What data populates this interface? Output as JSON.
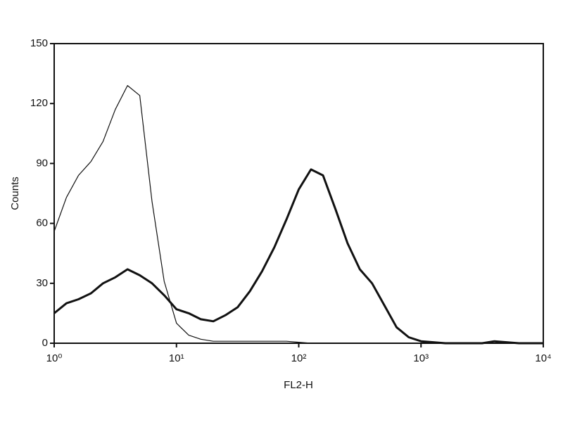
{
  "chart_data": {
    "type": "line",
    "x_label": "FL2-H",
    "y_label": "Counts",
    "x": [
      1,
      1.26,
      1.58,
      2,
      2.51,
      3.16,
      3.98,
      5.01,
      6.31,
      7.94,
      10,
      12.6,
      15.8,
      20,
      25.1,
      31.6,
      39.8,
      50.1,
      63.1,
      79.4,
      100,
      126,
      158,
      200,
      251,
      316,
      398,
      501,
      631,
      794,
      1000,
      1260,
      1580,
      2000,
      2510,
      3160,
      3980,
      5010,
      6310,
      7940,
      10000
    ],
    "series": [
      {
        "color": "#111111",
        "width": 1.2,
        "values": [
          56,
          73,
          84,
          91,
          101,
          117,
          129,
          124,
          71,
          31,
          10,
          4,
          2,
          1,
          1,
          1,
          1,
          1,
          1,
          1,
          0.5,
          0,
          0,
          0,
          0,
          0,
          0,
          0,
          0,
          0,
          0,
          0,
          0,
          0,
          0,
          0,
          0,
          0,
          0,
          0,
          0
        ]
      },
      {
        "color": "#111111",
        "width": 3,
        "values": [
          15,
          20,
          22,
          25,
          30,
          33,
          37,
          34,
          30,
          24,
          17,
          15,
          12,
          11,
          14,
          18,
          26,
          36,
          48,
          62,
          77,
          87,
          84,
          67,
          50,
          37,
          30,
          19,
          8,
          3,
          1,
          0.5,
          0,
          0,
          0,
          0,
          1,
          0.5,
          0,
          0,
          0
        ]
      }
    ],
    "xlim": [
      1,
      10000
    ],
    "xlog": true,
    "xticks": [
      {
        "value": 1,
        "label": "10⁰"
      },
      {
        "value": 10,
        "label": "10¹"
      },
      {
        "value": 100,
        "label": "10²"
      },
      {
        "value": 1000,
        "label": "10³"
      },
      {
        "value": 10000,
        "label": "10⁴"
      }
    ],
    "ylim": [
      0,
      150
    ],
    "yticks": [
      0,
      30,
      60,
      90,
      120,
      150
    ]
  }
}
